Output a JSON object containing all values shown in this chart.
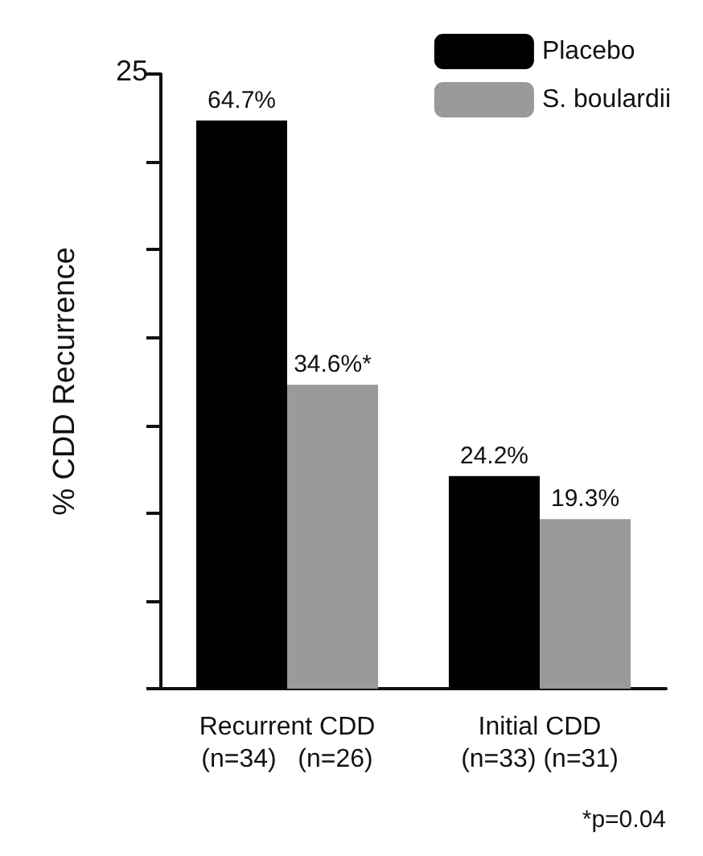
{
  "chart_data": {
    "type": "bar",
    "ylabel": "% CDD Recurrence",
    "categories": [
      "Recurrent CDD\n(n=34)   (n=26)",
      "Initial CDD\n(n=33) (n=31)"
    ],
    "series": [
      {
        "name": "Placebo",
        "color": "#000000",
        "values": [
          64.7,
          24.2
        ],
        "value_labels": [
          "64.7%",
          "24.2%"
        ]
      },
      {
        "name": "S. boulardii",
        "color": "#9a9a9a",
        "values": [
          34.6,
          19.3
        ],
        "value_labels": [
          "34.6%*",
          "19.3%"
        ]
      }
    ],
    "ylim": [
      0,
      70
    ],
    "yticks": [
      {
        "value": 0,
        "label": null
      },
      {
        "value": 10,
        "label": null
      },
      {
        "value": 20,
        "label": null
      },
      {
        "value": 30,
        "label": null
      },
      {
        "value": 40,
        "label": null
      },
      {
        "value": 50,
        "label": null
      },
      {
        "value": 60,
        "label": null
      },
      {
        "value": 70,
        "label": null
      }
    ],
    "annotations": [
      "25",
      "*p=0.04"
    ],
    "legend": "top right",
    "grid": false
  }
}
